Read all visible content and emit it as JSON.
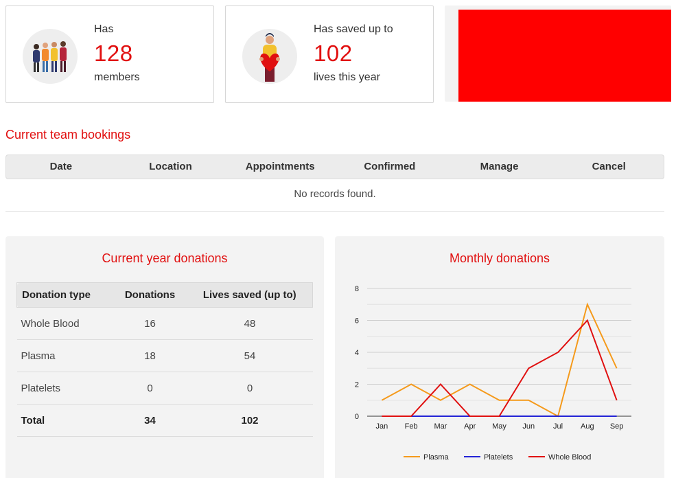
{
  "stats": {
    "members": {
      "pre": "Has",
      "value": "128",
      "post": "members",
      "icon": "group-of-people-icon"
    },
    "lives": {
      "pre": "Has saved up to",
      "value": "102",
      "post": "lives this year",
      "icon": "person-holding-heart-icon"
    }
  },
  "promo": {
    "color": "#ff0000"
  },
  "bookings": {
    "title": "Current team bookings",
    "columns": [
      "Date",
      "Location",
      "Appointments",
      "Confirmed",
      "Manage",
      "Cancel"
    ],
    "empty_text": "No records found."
  },
  "year_donations": {
    "title": "Current year donations",
    "columns": [
      "Donation type",
      "Donations",
      "Lives saved (up to)"
    ],
    "rows": [
      [
        "Whole Blood",
        "16",
        "48"
      ],
      [
        "Plasma",
        "18",
        "54"
      ],
      [
        "Platelets",
        "0",
        "0"
      ]
    ],
    "total": [
      "Total",
      "34",
      "102"
    ]
  },
  "monthly": {
    "title": "Monthly donations"
  },
  "colors": {
    "accent": "#e10f0f",
    "plasma": "#f59a1b",
    "platelets": "#2323d6",
    "whole_blood": "#e01010"
  },
  "chart_data": {
    "type": "line",
    "title": "Monthly donations",
    "categories": [
      "Jan",
      "Feb",
      "Mar",
      "Apr",
      "May",
      "Jun",
      "Jul",
      "Aug",
      "Sep"
    ],
    "ylim": [
      0,
      8
    ],
    "yticks": [
      0,
      2,
      4,
      6,
      8
    ],
    "grid": true,
    "legend_position": "bottom",
    "series": [
      {
        "name": "Plasma",
        "color": "#f59a1b",
        "values": [
          1,
          2,
          1,
          2,
          1,
          1,
          0,
          7,
          3
        ]
      },
      {
        "name": "Platelets",
        "color": "#2323d6",
        "values": [
          0,
          0,
          0,
          0,
          0,
          0,
          0,
          0,
          0
        ]
      },
      {
        "name": "Whole Blood",
        "color": "#e01010",
        "values": [
          0,
          0,
          2,
          0,
          0,
          3,
          4,
          6,
          1
        ]
      }
    ]
  }
}
